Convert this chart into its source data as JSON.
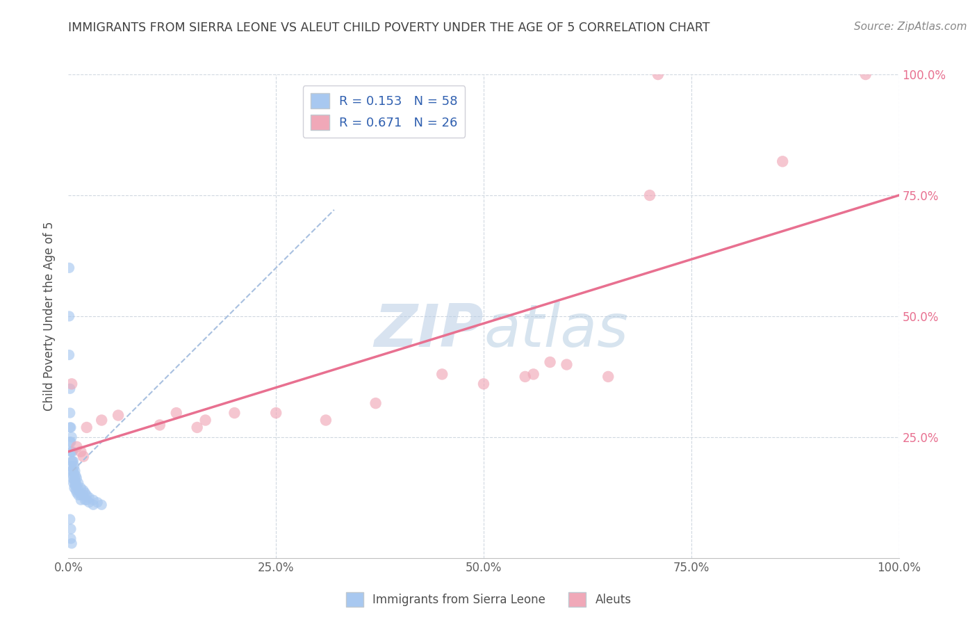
{
  "title": "IMMIGRANTS FROM SIERRA LEONE VS ALEUT CHILD POVERTY UNDER THE AGE OF 5 CORRELATION CHART",
  "source": "Source: ZipAtlas.com",
  "ylabel": "Child Poverty Under the Age of 5",
  "xlim": [
    0,
    1.0
  ],
  "ylim": [
    0,
    1.0
  ],
  "xtick_labels": [
    "0.0%",
    "25.0%",
    "50.0%",
    "75.0%",
    "100.0%"
  ],
  "xtick_vals": [
    0.0,
    0.25,
    0.5,
    0.75,
    1.0
  ],
  "ytick_labels": [
    "25.0%",
    "50.0%",
    "75.0%",
    "100.0%"
  ],
  "ytick_vals": [
    0.25,
    0.5,
    0.75,
    1.0
  ],
  "legend_r1": "R = 0.153",
  "legend_n1": "N = 58",
  "legend_r2": "R = 0.671",
  "legend_n2": "N = 26",
  "blue_color": "#a8c8f0",
  "pink_color": "#f0a8b8",
  "trendline1_color": "#a8c0e0",
  "trendline2_color": "#e87090",
  "watermark_color": "#c8d8ec",
  "grid_color": "#d0d8e0",
  "title_color": "#404040",
  "blue_scatter": [
    [
      0.001,
      0.6
    ],
    [
      0.001,
      0.5
    ],
    [
      0.001,
      0.42
    ],
    [
      0.002,
      0.35
    ],
    [
      0.002,
      0.3
    ],
    [
      0.002,
      0.27
    ],
    [
      0.002,
      0.24
    ],
    [
      0.003,
      0.27
    ],
    [
      0.003,
      0.24
    ],
    [
      0.003,
      0.22
    ],
    [
      0.003,
      0.19
    ],
    [
      0.004,
      0.25
    ],
    [
      0.004,
      0.22
    ],
    [
      0.004,
      0.2
    ],
    [
      0.004,
      0.18
    ],
    [
      0.005,
      0.22
    ],
    [
      0.005,
      0.2
    ],
    [
      0.005,
      0.18
    ],
    [
      0.005,
      0.165
    ],
    [
      0.006,
      0.2
    ],
    [
      0.006,
      0.185
    ],
    [
      0.006,
      0.17
    ],
    [
      0.006,
      0.155
    ],
    [
      0.007,
      0.19
    ],
    [
      0.007,
      0.175
    ],
    [
      0.007,
      0.16
    ],
    [
      0.007,
      0.145
    ],
    [
      0.008,
      0.18
    ],
    [
      0.008,
      0.165
    ],
    [
      0.008,
      0.15
    ],
    [
      0.009,
      0.17
    ],
    [
      0.009,
      0.155
    ],
    [
      0.009,
      0.14
    ],
    [
      0.01,
      0.165
    ],
    [
      0.01,
      0.15
    ],
    [
      0.01,
      0.135
    ],
    [
      0.012,
      0.155
    ],
    [
      0.012,
      0.14
    ],
    [
      0.012,
      0.13
    ],
    [
      0.015,
      0.145
    ],
    [
      0.015,
      0.13
    ],
    [
      0.015,
      0.12
    ],
    [
      0.018,
      0.14
    ],
    [
      0.018,
      0.13
    ],
    [
      0.02,
      0.135
    ],
    [
      0.02,
      0.12
    ],
    [
      0.022,
      0.13
    ],
    [
      0.022,
      0.12
    ],
    [
      0.025,
      0.125
    ],
    [
      0.025,
      0.115
    ],
    [
      0.03,
      0.12
    ],
    [
      0.03,
      0.11
    ],
    [
      0.035,
      0.115
    ],
    [
      0.04,
      0.11
    ],
    [
      0.002,
      0.08
    ],
    [
      0.003,
      0.06
    ],
    [
      0.003,
      0.04
    ],
    [
      0.004,
      0.03
    ]
  ],
  "pink_scatter": [
    [
      0.004,
      0.36
    ],
    [
      0.01,
      0.23
    ],
    [
      0.015,
      0.22
    ],
    [
      0.018,
      0.21
    ],
    [
      0.022,
      0.27
    ],
    [
      0.04,
      0.285
    ],
    [
      0.06,
      0.295
    ],
    [
      0.11,
      0.275
    ],
    [
      0.13,
      0.3
    ],
    [
      0.155,
      0.27
    ],
    [
      0.165,
      0.285
    ],
    [
      0.2,
      0.3
    ],
    [
      0.25,
      0.3
    ],
    [
      0.31,
      0.285
    ],
    [
      0.37,
      0.32
    ],
    [
      0.45,
      0.38
    ],
    [
      0.5,
      0.36
    ],
    [
      0.55,
      0.375
    ],
    [
      0.56,
      0.38
    ],
    [
      0.58,
      0.405
    ],
    [
      0.6,
      0.4
    ],
    [
      0.65,
      0.375
    ],
    [
      0.7,
      0.75
    ],
    [
      0.71,
      1.0
    ],
    [
      0.86,
      0.82
    ],
    [
      0.96,
      1.0
    ]
  ],
  "trendline1_x": [
    0.005,
    0.32
  ],
  "trendline1_y": [
    0.18,
    0.72
  ],
  "trendline2_x": [
    0.0,
    1.0
  ],
  "trendline2_y": [
    0.22,
    0.75
  ]
}
